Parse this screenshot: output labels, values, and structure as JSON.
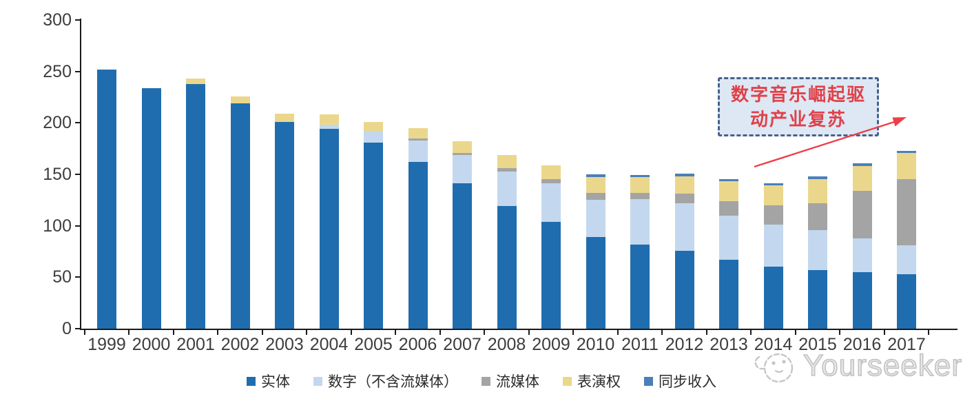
{
  "chart_data": {
    "type": "bar",
    "stacked": true,
    "title": "",
    "xlabel": "",
    "ylabel": "",
    "categories": [
      "1999",
      "2000",
      "2001",
      "2002",
      "2003",
      "2004",
      "2005",
      "2006",
      "2007",
      "2008",
      "2009",
      "2010",
      "2011",
      "2012",
      "2013",
      "2014",
      "2015",
      "2016",
      "2017"
    ],
    "series": [
      {
        "name": "实体",
        "color": "#1f6dae",
        "values": [
          252,
          234,
          238,
          219,
          201,
          194,
          181,
          162,
          141,
          119,
          104,
          89,
          82,
          76,
          67,
          60,
          57,
          55,
          53
        ]
      },
      {
        "name": "数字（不含流媒体）",
        "color": "#c3d8ee",
        "values": [
          0,
          0,
          0,
          0,
          0,
          4,
          11,
          21,
          28,
          34,
          37,
          36,
          44,
          46,
          43,
          41,
          39,
          33,
          28
        ]
      },
      {
        "name": "流媒体",
        "color": "#a4a4a4",
        "values": [
          0,
          0,
          0,
          0,
          0,
          0,
          0,
          2,
          2,
          3,
          4,
          7,
          6,
          9,
          14,
          19,
          26,
          46,
          64
        ]
      },
      {
        "name": "表演权",
        "color": "#ebd78c",
        "values": [
          0,
          0,
          5,
          7,
          8,
          10,
          9,
          10,
          11,
          13,
          14,
          15,
          15,
          17,
          19,
          19,
          23,
          24,
          26
        ]
      },
      {
        "name": "同步收入",
        "color": "#4a7fba",
        "values": [
          0,
          0,
          0,
          0,
          0,
          0,
          0,
          0,
          0,
          0,
          0,
          3,
          2,
          3,
          2,
          2,
          3,
          3,
          2
        ]
      }
    ],
    "ylim": [
      0,
      300
    ],
    "yticks": [
      0,
      50,
      100,
      150,
      200,
      250,
      300
    ],
    "grid": false,
    "legend_position": "bottom"
  },
  "annotation": {
    "line1": "数字音乐崛起驱",
    "line2": "动产业复苏",
    "text_color": "#e04149",
    "border_color": "#47618c",
    "fill_color": "#dde8f4",
    "arrow_color": "#ee3f48"
  },
  "watermark": {
    "text": "Yourseeker",
    "logo": "yourseeker-face-logo",
    "color": "#c2c2c2"
  },
  "axis": {
    "line_color": "#1a1a1a",
    "label_color": "#3d3d3d"
  }
}
